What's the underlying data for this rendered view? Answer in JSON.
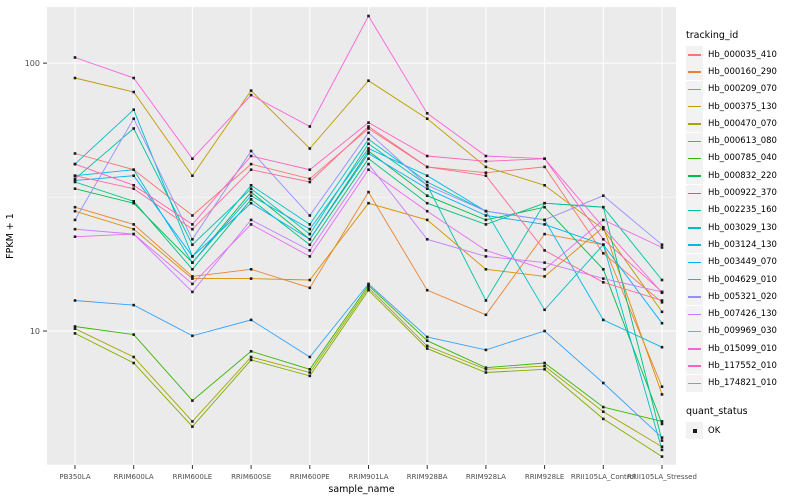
{
  "chart_data": {
    "type": "line",
    "title": "",
    "xlabel": "sample_name",
    "ylabel": "FPKM + 1",
    "y_scale": "log10",
    "ylim": [
      3.162,
      162
    ],
    "y_major_ticks": [
      "100",
      "10"
    ],
    "y_major_values": [
      100,
      10
    ],
    "y_minor_values": [
      31.62,
      3.162
    ],
    "grid": true,
    "panel_bg": "#EBEBEB",
    "grid_color": "#FFFFFF",
    "tick_text_color": "#4D4D4D",
    "axis_title_color": "#000000",
    "marker_color": "#1a1a1a",
    "marker_shape": "square",
    "legend_position": "right",
    "categories": [
      "PB350LA",
      "RRIM600LA",
      "RRIM600LE",
      "RRIM600SE",
      "RRIM600PE",
      "RRIM901LA",
      "RRIM928BA",
      "RRIM928LA",
      "RRIM928LE",
      "RRII105LA_Control",
      "RRII105LA_Stressed"
    ],
    "series": [
      {
        "name": "Hb_000035_410",
        "color": "#F8766D",
        "values": [
          46,
          40,
          27,
          42,
          37,
          57,
          41,
          39,
          41,
          19.5,
          12.8
        ]
      },
      {
        "name": "Hb_000160_290",
        "color": "#EA8331",
        "values": [
          29,
          25,
          16,
          17,
          14.5,
          33,
          14.2,
          11.5,
          23,
          21,
          6.2
        ]
      },
      {
        "name": "Hb_000209_070",
        "color": "#D89000",
        "values": [
          28,
          24,
          15.7,
          15.7,
          15.5,
          30,
          26,
          17,
          16,
          24.4,
          5.8
        ]
      },
      {
        "name": "Hb_000375_130",
        "color": "#C09B00",
        "values": [
          88,
          78,
          38,
          79,
          48,
          86,
          62,
          41,
          35,
          24,
          11.8
        ]
      },
      {
        "name": "Hb_000470_070",
        "color": "#A3A500",
        "values": [
          10.2,
          8,
          4.6,
          8,
          7,
          14.5,
          8.8,
          7.2,
          7.4,
          5,
          3.7
        ]
      },
      {
        "name": "Hb_000613_080",
        "color": "#7CAE00",
        "values": [
          9.8,
          7.6,
          4.4,
          7.8,
          6.8,
          14.2,
          8.6,
          7,
          7.2,
          4.7,
          3.4
        ]
      },
      {
        "name": "Hb_000785_040",
        "color": "#39B600",
        "values": [
          10.4,
          9.7,
          5.5,
          8.4,
          7.2,
          14.8,
          9.2,
          7.3,
          7.6,
          5.2,
          4.6
        ]
      },
      {
        "name": "Hb_000832_220",
        "color": "#00BB4E",
        "values": [
          34,
          30,
          18,
          33,
          22,
          47,
          32,
          26,
          29,
          17,
          4.5
        ]
      },
      {
        "name": "Hb_000922_370",
        "color": "#00BF7D",
        "values": [
          36,
          30.5,
          17,
          31,
          21,
          44,
          30,
          25,
          30,
          29,
          3.9
        ]
      },
      {
        "name": "Hb_002235_160",
        "color": "#00C1A3",
        "values": [
          37,
          57,
          21,
          34,
          23,
          50,
          35,
          13,
          30,
          29,
          15.5
        ]
      },
      {
        "name": "Hb_003029_130",
        "color": "#00BFC4",
        "values": [
          42,
          67,
          19,
          35,
          25,
          52,
          36,
          28,
          12,
          21,
          3.6
        ]
      },
      {
        "name": "Hb_003124_130",
        "color": "#00BAE0",
        "values": [
          38,
          40,
          18,
          32,
          24,
          48,
          38,
          28,
          26,
          11,
          8.7
        ]
      },
      {
        "name": "Hb_003449_070",
        "color": "#00B0F6",
        "values": [
          36.5,
          38,
          19,
          30,
          22,
          46,
          34,
          27,
          25,
          21,
          10.7
        ]
      },
      {
        "name": "Hb_004629_010",
        "color": "#35A2FF",
        "values": [
          13,
          12.5,
          9.6,
          11,
          8,
          15,
          9.5,
          8.5,
          10,
          6.4,
          4.0
        ]
      },
      {
        "name": "Hb_005321_020",
        "color": "#9590FF",
        "values": [
          26,
          62,
          22,
          47,
          27,
          55,
          35,
          28,
          26,
          32,
          21
        ]
      },
      {
        "name": "Hb_007426_130",
        "color": "#C77CFF",
        "values": [
          24,
          23,
          14,
          26,
          20,
          42,
          22,
          19,
          18,
          15.7,
          14
        ]
      },
      {
        "name": "Hb_009969_030",
        "color": "#E76BF3",
        "values": [
          22.5,
          23,
          15,
          25,
          19,
          40,
          28,
          20,
          17,
          26,
          20.5
        ]
      },
      {
        "name": "Hb_015099_010",
        "color": "#FA62DB",
        "values": [
          105,
          88,
          44,
          76,
          58,
          150,
          65,
          45,
          44,
          24.4,
          13.9
        ]
      },
      {
        "name": "Hb_117552_010",
        "color": "#FF62BC",
        "values": [
          42,
          35,
          25,
          45,
          40,
          60,
          45,
          43,
          44,
          22,
          14
        ]
      },
      {
        "name": "Hb_174821_010",
        "color": "#FF6A98",
        "values": [
          38,
          34,
          24,
          40,
          36,
          58,
          41,
          38,
          20,
          15.2,
          13
        ]
      }
    ]
  },
  "legend": {
    "tracking_title": "tracking_id",
    "quant_title": "quant_status",
    "quant_items": [
      {
        "label": "OK"
      }
    ]
  }
}
